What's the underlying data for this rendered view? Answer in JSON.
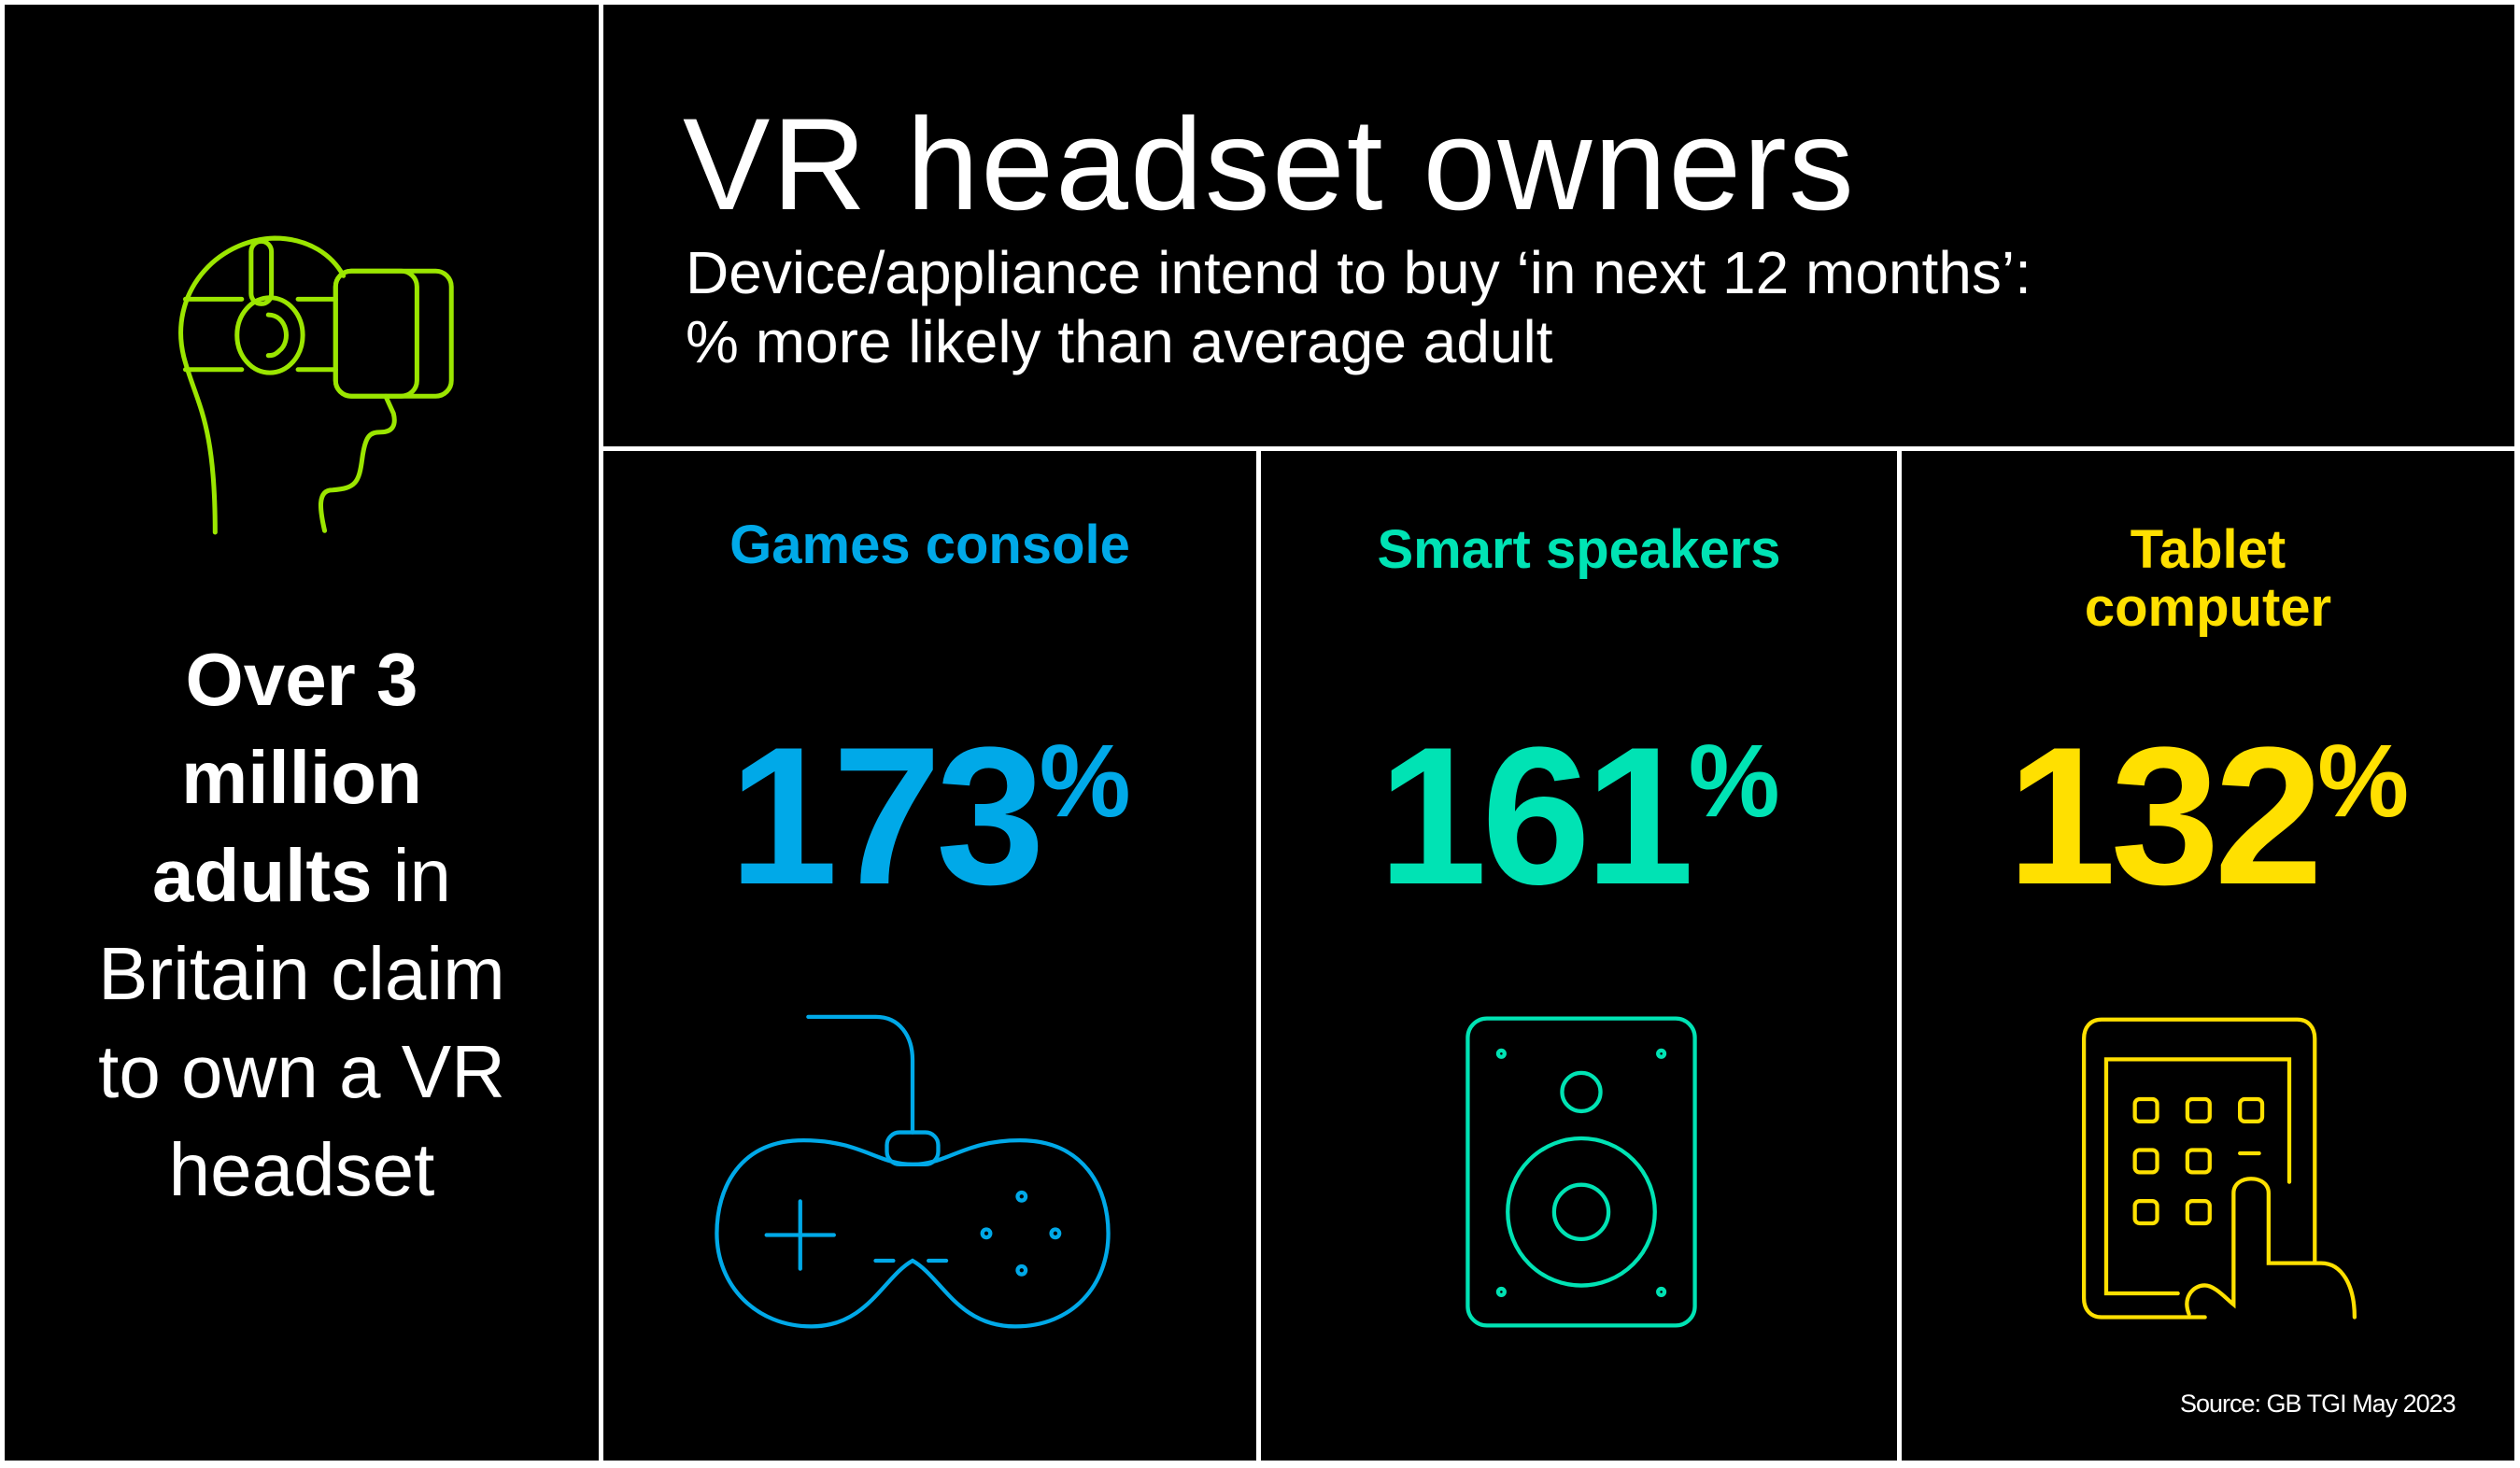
{
  "left_panel": {
    "icon": "vr-headset-icon",
    "line1_bold": "Over 3",
    "line2_bold": "million",
    "line3_bold": "adults",
    "line3_rest": " in",
    "line4": "Britain claim",
    "line5": "to own a VR",
    "line6": "headset"
  },
  "header": {
    "title": "VR headset owners",
    "subtitle_line1": "Device/appliance intend to buy ‘in next 12 months’:",
    "subtitle_line2": "% more likely than average adult"
  },
  "columns": [
    {
      "label": "Games console",
      "value": "173",
      "unit": "%",
      "color": "#00a9e8",
      "icon": "game-controller-icon"
    },
    {
      "label": "Smart speakers",
      "value": "161",
      "unit": "%",
      "color": "#00e3b4",
      "icon": "speaker-icon"
    },
    {
      "label_line1": "Tablet",
      "label_line2": "computer",
      "value": "132",
      "unit": "%",
      "color": "#ffe000",
      "icon": "tablet-touch-icon"
    }
  ],
  "colors": {
    "lime": "#9be600",
    "background": "#000000",
    "divider": "#ffffff"
  },
  "footer": {
    "source": "Source: GB TGI May 2023"
  }
}
